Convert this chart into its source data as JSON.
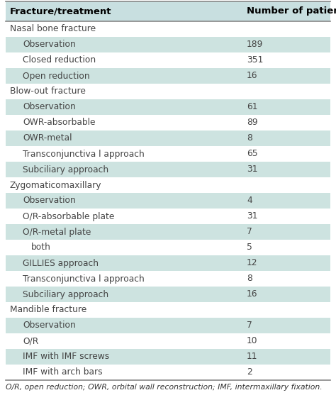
{
  "col1_header": "Fracture/treatment",
  "col2_header": "Number of patients",
  "rows": [
    {
      "label": "Nasal bone fracture",
      "value": "",
      "is_section": true,
      "indent": 0
    },
    {
      "label": "Observation",
      "value": "189",
      "is_section": false,
      "indent": 1
    },
    {
      "label": "Closed reduction",
      "value": "351",
      "is_section": false,
      "indent": 1
    },
    {
      "label": "Open reduction",
      "value": "16",
      "is_section": false,
      "indent": 1
    },
    {
      "label": "Blow-out fracture",
      "value": "",
      "is_section": true,
      "indent": 0
    },
    {
      "label": "Observation",
      "value": "61",
      "is_section": false,
      "indent": 1
    },
    {
      "label": "OWR-absorbable",
      "value": "89",
      "is_section": false,
      "indent": 1
    },
    {
      "label": "OWR-metal",
      "value": "8",
      "is_section": false,
      "indent": 1
    },
    {
      "label": "Transconjunctiva l approach",
      "value": "65",
      "is_section": false,
      "indent": 1
    },
    {
      "label": "Subciliary approach",
      "value": "31",
      "is_section": false,
      "indent": 1
    },
    {
      "label": "Zygomaticomaxillary",
      "value": "",
      "is_section": true,
      "indent": 0
    },
    {
      "label": "Observation",
      "value": "4",
      "is_section": false,
      "indent": 1
    },
    {
      "label": "O/R-absorbable plate",
      "value": "31",
      "is_section": false,
      "indent": 1
    },
    {
      "label": "O/R-metal plate",
      "value": "7",
      "is_section": false,
      "indent": 1
    },
    {
      "label": "both",
      "value": "5",
      "is_section": false,
      "indent": 2
    },
    {
      "label": "GILLIES approach",
      "value": "12",
      "is_section": false,
      "indent": 1
    },
    {
      "label": "Transconjunctiva l approach",
      "value": "8",
      "is_section": false,
      "indent": 1
    },
    {
      "label": "Subciliary approach",
      "value": "16",
      "is_section": false,
      "indent": 1
    },
    {
      "label": "Mandible fracture",
      "value": "",
      "is_section": true,
      "indent": 0
    },
    {
      "label": "Observation",
      "value": "7",
      "is_section": false,
      "indent": 1
    },
    {
      "label": "O/R",
      "value": "10",
      "is_section": false,
      "indent": 1
    },
    {
      "label": "IMF with IMF screws",
      "value": "11",
      "is_section": false,
      "indent": 1
    },
    {
      "label": "IMF with arch bars",
      "value": "2",
      "is_section": false,
      "indent": 1
    }
  ],
  "footnote": "O/R, open reduction; OWR, orbital wall reconstruction; IMF, intermaxillary fixation.",
  "header_bg": "#c8dfe0",
  "teal_bg": "#cde3e0",
  "white_bg": "#ffffff",
  "table_border_color": "#888888",
  "header_text_color": "#000000",
  "row_text_color": "#444444",
  "header_fontsize": 9.5,
  "row_fontsize": 8.8,
  "footnote_fontsize": 7.8,
  "row_bg_colors": [
    "#ffffff",
    "#cde3e0",
    "#ffffff",
    "#cde3e0",
    "#ffffff",
    "#cde3e0",
    "#ffffff",
    "#cde3e0",
    "#ffffff",
    "#cde3e0",
    "#ffffff",
    "#cde3e0",
    "#ffffff",
    "#cde3e0",
    "#ffffff",
    "#cde3e0",
    "#ffffff",
    "#cde3e0",
    "#ffffff",
    "#cde3e0",
    "#ffffff",
    "#cde3e0",
    "#ffffff"
  ]
}
